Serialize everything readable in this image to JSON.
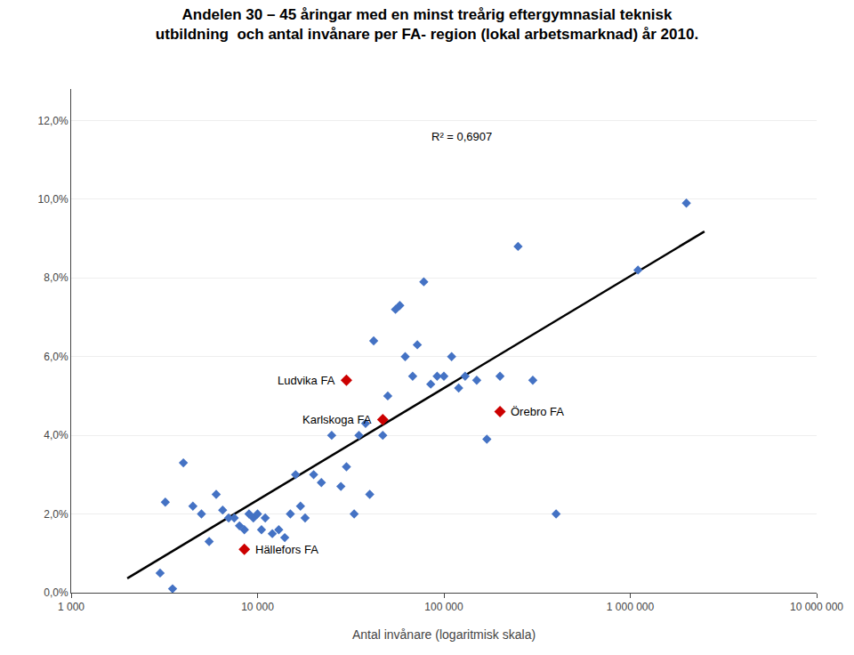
{
  "chart_data": {
    "type": "scatter",
    "title": "Andelen 30 – 45 åringar med en minst treårig eftergymnasial teknisk\nutbildning  och antal invånare per FA- region (lokal arbetsmarknad) år 2010.",
    "x_label": "Antal invånare (logaritmisk skala)",
    "log": "x",
    "grid": "y",
    "xlim": [
      1000,
      10000000
    ],
    "xticks": [
      {
        "value": 1000,
        "label": "1 000"
      },
      {
        "value": 10000,
        "label": "10 000"
      },
      {
        "value": 100000,
        "label": "100 000"
      },
      {
        "value": 1000000,
        "label": "1 000 000"
      },
      {
        "value": 10000000,
        "label": "10 000 000"
      }
    ],
    "ylim": [
      0.0,
      0.128
    ],
    "yticks": [
      {
        "value": 0.0,
        "label": "0,0%"
      },
      {
        "value": 0.02,
        "label": "2,0%"
      },
      {
        "value": 0.04,
        "label": "4,0%"
      },
      {
        "value": 0.06,
        "label": "6,0%"
      },
      {
        "value": 0.08,
        "label": "8,0%"
      },
      {
        "value": 0.1,
        "label": "10,0%"
      },
      {
        "value": 0.12,
        "label": "12,0%"
      }
    ],
    "series": [
      {
        "type": "scatter",
        "color": "#4472C4",
        "marker": "diamond",
        "x": [
          3000,
          3200,
          3500,
          4000,
          4500,
          5000,
          5500,
          6000,
          6500,
          7000,
          7500,
          8000,
          8500,
          9000,
          9500,
          10000,
          10500,
          11000,
          12000,
          13000,
          14000,
          15000,
          16000,
          17000,
          18000,
          20000,
          22000,
          25000,
          28000,
          30000,
          33000,
          35000,
          38000,
          40000,
          42000,
          47000,
          50000,
          55000,
          58000,
          62000,
          68000,
          72000,
          78000,
          85000,
          92000,
          100000,
          110000,
          120000,
          130000,
          150000,
          170000,
          200000,
          250000,
          300000,
          400000,
          1100000,
          2000000
        ],
        "values": [
          0.005,
          0.023,
          0.001,
          0.033,
          0.022,
          0.02,
          0.013,
          0.025,
          0.021,
          0.019,
          0.019,
          0.017,
          0.016,
          0.02,
          0.019,
          0.02,
          0.016,
          0.019,
          0.015,
          0.016,
          0.014,
          0.02,
          0.03,
          0.022,
          0.019,
          0.03,
          0.028,
          0.04,
          0.027,
          0.032,
          0.02,
          0.04,
          0.043,
          0.025,
          0.064,
          0.04,
          0.05,
          0.072,
          0.073,
          0.06,
          0.055,
          0.063,
          0.079,
          0.053,
          0.055,
          0.055,
          0.06,
          0.052,
          0.055,
          0.054,
          0.039,
          0.055,
          0.088,
          0.054,
          0.02,
          0.082,
          0.099
        ]
      },
      {
        "type": "scatter",
        "color": "#CC0000",
        "marker": "diamond",
        "x": [
          30000,
          47000,
          8500,
          200000
        ],
        "values": [
          0.054,
          0.044,
          0.011,
          0.046
        ]
      },
      {
        "type": "line",
        "color": "#000000",
        "line_style": "solid",
        "x": [
          2000,
          2500000
        ],
        "values": [
          0.00365,
          0.09179
        ]
      }
    ],
    "annotations": [
      {
        "x": 30000,
        "y": 0.054,
        "text": "Ludvika FA",
        "align": "right"
      },
      {
        "x": 47000,
        "y": 0.044,
        "text": "Karlskoga FA",
        "align": "right"
      },
      {
        "x": 8500,
        "y": 0.011,
        "text": "Hällefors FA",
        "align": "left"
      },
      {
        "x": 200000,
        "y": 0.046,
        "text": "Örebro FA",
        "align": "left"
      },
      {
        "x": 75000,
        "y": 0.116,
        "text": "R² = 0,6907",
        "align": "left"
      }
    ]
  }
}
